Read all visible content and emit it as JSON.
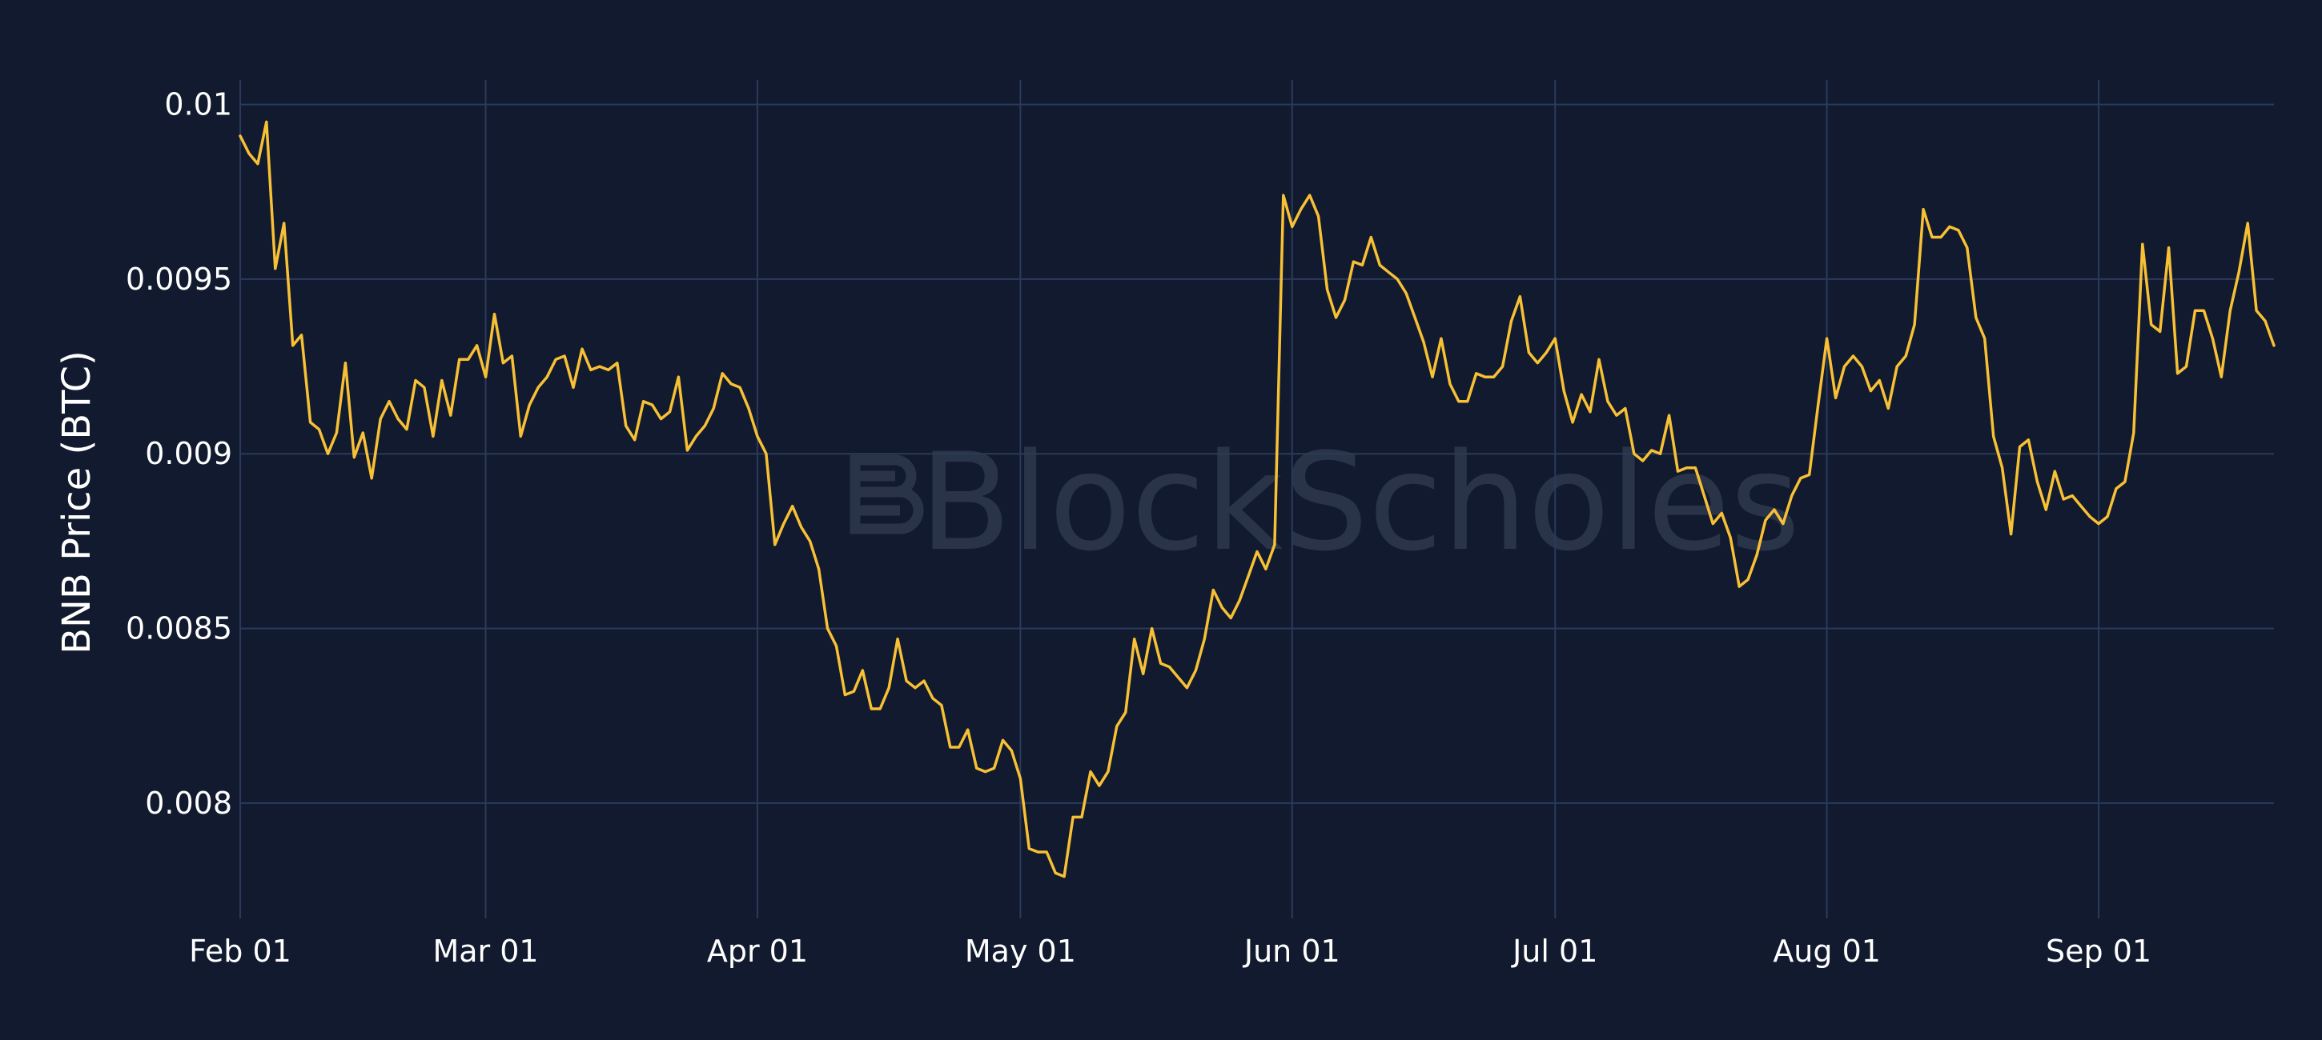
{
  "watermark": "BlockScholes",
  "colors": {
    "background": "#111a2e",
    "grid": "#2b3a5c",
    "line": "#f7c035",
    "text": "#ffffff",
    "watermark": "#2a3448"
  },
  "chart_data": {
    "type": "line",
    "title": "",
    "xlabel": "",
    "ylabel": "BNB Price (BTC)",
    "grid": true,
    "legend": "none",
    "xlim": [
      "2023-02-01",
      "2023-09-21"
    ],
    "ylim": [
      0.00767,
      0.01007
    ],
    "x_ticks": [
      {
        "date": "2023-02-01",
        "label": "Feb 01"
      },
      {
        "date": "2023-03-01",
        "label": "Mar 01"
      },
      {
        "date": "2023-04-01",
        "label": "Apr 01"
      },
      {
        "date": "2023-05-01",
        "label": "May 01"
      },
      {
        "date": "2023-06-01",
        "label": "Jun 01"
      },
      {
        "date": "2023-07-01",
        "label": "Jul 01"
      },
      {
        "date": "2023-08-01",
        "label": "Aug 01"
      },
      {
        "date": "2023-09-01",
        "label": "Sep 01"
      }
    ],
    "y_ticks": [
      {
        "value": 0.008,
        "label": "0.008"
      },
      {
        "value": 0.0085,
        "label": "0.0085"
      },
      {
        "value": 0.009,
        "label": "0.009"
      },
      {
        "value": 0.0095,
        "label": "0.0095"
      },
      {
        "value": 0.01,
        "label": "0.01"
      }
    ],
    "series": [
      {
        "color": "#f7c035",
        "points": [
          [
            "2023-02-01",
            0.00991
          ],
          [
            "2023-02-02",
            0.00986
          ],
          [
            "2023-02-03",
            0.00983
          ],
          [
            "2023-02-04",
            0.00995
          ],
          [
            "2023-02-05",
            0.00953
          ],
          [
            "2023-02-06",
            0.00966
          ],
          [
            "2023-02-07",
            0.00931
          ],
          [
            "2023-02-08",
            0.00934
          ],
          [
            "2023-02-09",
            0.00909
          ],
          [
            "2023-02-10",
            0.00907
          ],
          [
            "2023-02-11",
            0.009
          ],
          [
            "2023-02-12",
            0.00906
          ],
          [
            "2023-02-13",
            0.00926
          ],
          [
            "2023-02-14",
            0.00899
          ],
          [
            "2023-02-15",
            0.00906
          ],
          [
            "2023-02-16",
            0.00893
          ],
          [
            "2023-02-17",
            0.0091
          ],
          [
            "2023-02-18",
            0.00915
          ],
          [
            "2023-02-19",
            0.0091
          ],
          [
            "2023-02-20",
            0.00907
          ],
          [
            "2023-02-21",
            0.00921
          ],
          [
            "2023-02-22",
            0.00919
          ],
          [
            "2023-02-23",
            0.00905
          ],
          [
            "2023-02-24",
            0.00921
          ],
          [
            "2023-02-25",
            0.00911
          ],
          [
            "2023-02-26",
            0.00927
          ],
          [
            "2023-02-27",
            0.00927
          ],
          [
            "2023-02-28",
            0.00931
          ],
          [
            "2023-03-01",
            0.00922
          ],
          [
            "2023-03-02",
            0.0094
          ],
          [
            "2023-03-03",
            0.00926
          ],
          [
            "2023-03-04",
            0.00928
          ],
          [
            "2023-03-05",
            0.00905
          ],
          [
            "2023-03-06",
            0.00914
          ],
          [
            "2023-03-07",
            0.00919
          ],
          [
            "2023-03-08",
            0.00922
          ],
          [
            "2023-03-09",
            0.00927
          ],
          [
            "2023-03-10",
            0.00928
          ],
          [
            "2023-03-11",
            0.00919
          ],
          [
            "2023-03-12",
            0.0093
          ],
          [
            "2023-03-13",
            0.00924
          ],
          [
            "2023-03-14",
            0.00925
          ],
          [
            "2023-03-15",
            0.00924
          ],
          [
            "2023-03-16",
            0.00926
          ],
          [
            "2023-03-17",
            0.00908
          ],
          [
            "2023-03-18",
            0.00904
          ],
          [
            "2023-03-19",
            0.00915
          ],
          [
            "2023-03-20",
            0.00914
          ],
          [
            "2023-03-21",
            0.0091
          ],
          [
            "2023-03-22",
            0.00912
          ],
          [
            "2023-03-23",
            0.00922
          ],
          [
            "2023-03-24",
            0.00901
          ],
          [
            "2023-03-25",
            0.00905
          ],
          [
            "2023-03-26",
            0.00908
          ],
          [
            "2023-03-27",
            0.00913
          ],
          [
            "2023-03-28",
            0.00923
          ],
          [
            "2023-03-29",
            0.0092
          ],
          [
            "2023-03-30",
            0.00919
          ],
          [
            "2023-03-31",
            0.00913
          ],
          [
            "2023-04-01",
            0.00905
          ],
          [
            "2023-04-02",
            0.009
          ],
          [
            "2023-04-03",
            0.00874
          ],
          [
            "2023-04-04",
            0.0088
          ],
          [
            "2023-04-05",
            0.00885
          ],
          [
            "2023-04-06",
            0.00879
          ],
          [
            "2023-04-07",
            0.00875
          ],
          [
            "2023-04-08",
            0.00867
          ],
          [
            "2023-04-09",
            0.0085
          ],
          [
            "2023-04-10",
            0.00845
          ],
          [
            "2023-04-11",
            0.00831
          ],
          [
            "2023-04-12",
            0.00832
          ],
          [
            "2023-04-13",
            0.00838
          ],
          [
            "2023-04-14",
            0.00827
          ],
          [
            "2023-04-15",
            0.00827
          ],
          [
            "2023-04-16",
            0.00833
          ],
          [
            "2023-04-17",
            0.00847
          ],
          [
            "2023-04-18",
            0.00835
          ],
          [
            "2023-04-19",
            0.00833
          ],
          [
            "2023-04-20",
            0.00835
          ],
          [
            "2023-04-21",
            0.0083
          ],
          [
            "2023-04-22",
            0.00828
          ],
          [
            "2023-04-23",
            0.00816
          ],
          [
            "2023-04-24",
            0.00816
          ],
          [
            "2023-04-25",
            0.00821
          ],
          [
            "2023-04-26",
            0.0081
          ],
          [
            "2023-04-27",
            0.00809
          ],
          [
            "2023-04-28",
            0.0081
          ],
          [
            "2023-04-29",
            0.00818
          ],
          [
            "2023-04-30",
            0.00815
          ],
          [
            "2023-05-01",
            0.00807
          ],
          [
            "2023-05-02",
            0.00787
          ],
          [
            "2023-05-03",
            0.00786
          ],
          [
            "2023-05-04",
            0.00786
          ],
          [
            "2023-05-05",
            0.0078
          ],
          [
            "2023-05-06",
            0.00779
          ],
          [
            "2023-05-07",
            0.00796
          ],
          [
            "2023-05-08",
            0.00796
          ],
          [
            "2023-05-09",
            0.00809
          ],
          [
            "2023-05-10",
            0.00805
          ],
          [
            "2023-05-11",
            0.00809
          ],
          [
            "2023-05-12",
            0.00822
          ],
          [
            "2023-05-13",
            0.00826
          ],
          [
            "2023-05-14",
            0.00847
          ],
          [
            "2023-05-15",
            0.00837
          ],
          [
            "2023-05-16",
            0.0085
          ],
          [
            "2023-05-17",
            0.0084
          ],
          [
            "2023-05-18",
            0.00839
          ],
          [
            "2023-05-19",
            0.00836
          ],
          [
            "2023-05-20",
            0.00833
          ],
          [
            "2023-05-21",
            0.00838
          ],
          [
            "2023-05-22",
            0.00847
          ],
          [
            "2023-05-23",
            0.00861
          ],
          [
            "2023-05-24",
            0.00856
          ],
          [
            "2023-05-25",
            0.00853
          ],
          [
            "2023-05-26",
            0.00858
          ],
          [
            "2023-05-27",
            0.00865
          ],
          [
            "2023-05-28",
            0.00872
          ],
          [
            "2023-05-29",
            0.00867
          ],
          [
            "2023-05-30",
            0.00874
          ],
          [
            "2023-05-31",
            0.00974
          ],
          [
            "2023-06-01",
            0.00965
          ],
          [
            "2023-06-02",
            0.0097
          ],
          [
            "2023-06-03",
            0.00974
          ],
          [
            "2023-06-04",
            0.00968
          ],
          [
            "2023-06-05",
            0.00947
          ],
          [
            "2023-06-06",
            0.00939
          ],
          [
            "2023-06-07",
            0.00944
          ],
          [
            "2023-06-08",
            0.00955
          ],
          [
            "2023-06-09",
            0.00954
          ],
          [
            "2023-06-10",
            0.00962
          ],
          [
            "2023-06-11",
            0.00954
          ],
          [
            "2023-06-12",
            0.00952
          ],
          [
            "2023-06-13",
            0.0095
          ],
          [
            "2023-06-14",
            0.00946
          ],
          [
            "2023-06-15",
            0.00939
          ],
          [
            "2023-06-16",
            0.00932
          ],
          [
            "2023-06-17",
            0.00922
          ],
          [
            "2023-06-18",
            0.00933
          ],
          [
            "2023-06-19",
            0.0092
          ],
          [
            "2023-06-20",
            0.00915
          ],
          [
            "2023-06-21",
            0.00915
          ],
          [
            "2023-06-22",
            0.00923
          ],
          [
            "2023-06-23",
            0.00922
          ],
          [
            "2023-06-24",
            0.00922
          ],
          [
            "2023-06-25",
            0.00925
          ],
          [
            "2023-06-26",
            0.00938
          ],
          [
            "2023-06-27",
            0.00945
          ],
          [
            "2023-06-28",
            0.00929
          ],
          [
            "2023-06-29",
            0.00926
          ],
          [
            "2023-06-30",
            0.00929
          ],
          [
            "2023-07-01",
            0.00933
          ],
          [
            "2023-07-02",
            0.00918
          ],
          [
            "2023-07-03",
            0.00909
          ],
          [
            "2023-07-04",
            0.00917
          ],
          [
            "2023-07-05",
            0.00912
          ],
          [
            "2023-07-06",
            0.00927
          ],
          [
            "2023-07-07",
            0.00915
          ],
          [
            "2023-07-08",
            0.00911
          ],
          [
            "2023-07-09",
            0.00913
          ],
          [
            "2023-07-10",
            0.009
          ],
          [
            "2023-07-11",
            0.00898
          ],
          [
            "2023-07-12",
            0.00901
          ],
          [
            "2023-07-13",
            0.009
          ],
          [
            "2023-07-14",
            0.00911
          ],
          [
            "2023-07-15",
            0.00895
          ],
          [
            "2023-07-16",
            0.00896
          ],
          [
            "2023-07-17",
            0.00896
          ],
          [
            "2023-07-18",
            0.00888
          ],
          [
            "2023-07-19",
            0.0088
          ],
          [
            "2023-07-20",
            0.00883
          ],
          [
            "2023-07-21",
            0.00876
          ],
          [
            "2023-07-22",
            0.00862
          ],
          [
            "2023-07-23",
            0.00864
          ],
          [
            "2023-07-24",
            0.00871
          ],
          [
            "2023-07-25",
            0.00881
          ],
          [
            "2023-07-26",
            0.00884
          ],
          [
            "2023-07-27",
            0.0088
          ],
          [
            "2023-07-28",
            0.00888
          ],
          [
            "2023-07-29",
            0.00893
          ],
          [
            "2023-07-30",
            0.00894
          ],
          [
            "2023-07-31",
            0.00914
          ],
          [
            "2023-08-01",
            0.00933
          ],
          [
            "2023-08-02",
            0.00916
          ],
          [
            "2023-08-03",
            0.00925
          ],
          [
            "2023-08-04",
            0.00928
          ],
          [
            "2023-08-05",
            0.00925
          ],
          [
            "2023-08-06",
            0.00918
          ],
          [
            "2023-08-07",
            0.00921
          ],
          [
            "2023-08-08",
            0.00913
          ],
          [
            "2023-08-09",
            0.00925
          ],
          [
            "2023-08-10",
            0.00928
          ],
          [
            "2023-08-11",
            0.00937
          ],
          [
            "2023-08-12",
            0.0097
          ],
          [
            "2023-08-13",
            0.00962
          ],
          [
            "2023-08-14",
            0.00962
          ],
          [
            "2023-08-15",
            0.00965
          ],
          [
            "2023-08-16",
            0.00964
          ],
          [
            "2023-08-17",
            0.00959
          ],
          [
            "2023-08-18",
            0.00939
          ],
          [
            "2023-08-19",
            0.00933
          ],
          [
            "2023-08-20",
            0.00905
          ],
          [
            "2023-08-21",
            0.00896
          ],
          [
            "2023-08-22",
            0.00877
          ],
          [
            "2023-08-23",
            0.00902
          ],
          [
            "2023-08-24",
            0.00904
          ],
          [
            "2023-08-25",
            0.00892
          ],
          [
            "2023-08-26",
            0.00884
          ],
          [
            "2023-08-27",
            0.00895
          ],
          [
            "2023-08-28",
            0.00887
          ],
          [
            "2023-08-29",
            0.00888
          ],
          [
            "2023-08-30",
            0.00885
          ],
          [
            "2023-08-31",
            0.00882
          ],
          [
            "2023-09-01",
            0.0088
          ],
          [
            "2023-09-02",
            0.00882
          ],
          [
            "2023-09-03",
            0.0089
          ],
          [
            "2023-09-04",
            0.00892
          ],
          [
            "2023-09-05",
            0.00906
          ],
          [
            "2023-09-06",
            0.0096
          ],
          [
            "2023-09-07",
            0.00937
          ],
          [
            "2023-09-08",
            0.00935
          ],
          [
            "2023-09-09",
            0.00959
          ],
          [
            "2023-09-10",
            0.00923
          ],
          [
            "2023-09-11",
            0.00925
          ],
          [
            "2023-09-12",
            0.00941
          ],
          [
            "2023-09-13",
            0.00941
          ],
          [
            "2023-09-14",
            0.00933
          ],
          [
            "2023-09-15",
            0.00922
          ],
          [
            "2023-09-16",
            0.00941
          ],
          [
            "2023-09-17",
            0.00952
          ],
          [
            "2023-09-18",
            0.00966
          ],
          [
            "2023-09-19",
            0.00941
          ],
          [
            "2023-09-20",
            0.00938
          ],
          [
            "2023-09-21",
            0.00931
          ]
        ]
      }
    ]
  }
}
